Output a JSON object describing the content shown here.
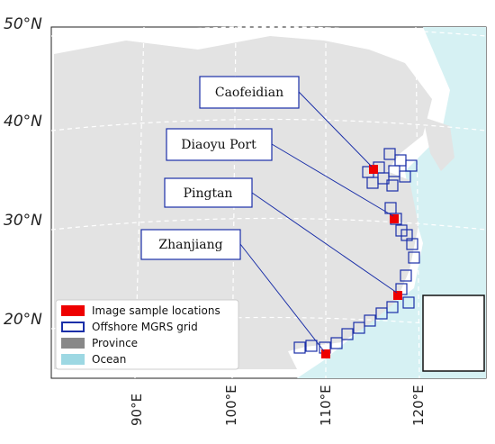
{
  "lat_labels": [
    "50°N",
    "40°N",
    "30°N",
    "20°N"
  ],
  "lon_labels": [
    "90°E",
    "100°E",
    "110°E",
    "120°E"
  ],
  "places": [
    "Caofeidian",
    "Diaoyu Port",
    "Pingtan",
    "Zhanjiang"
  ],
  "legend": [
    "Image sample locations",
    "Offshore MGRS grid",
    "Province",
    "Ocean"
  ]
}
